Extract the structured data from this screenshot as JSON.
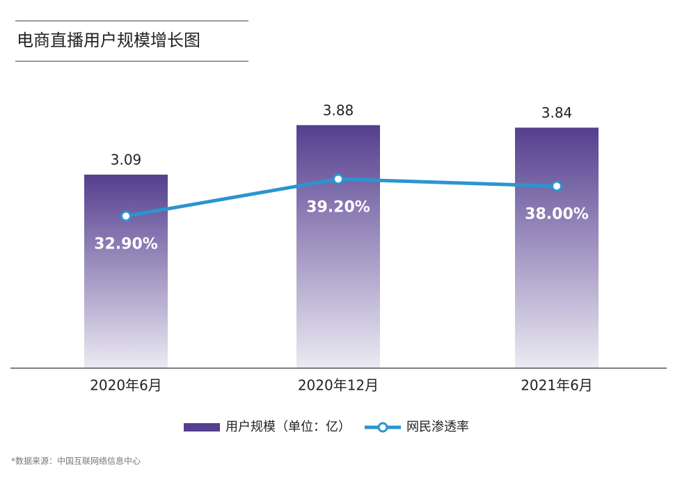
{
  "chart_data": {
    "type": "bar",
    "title": "电商直播用户规模增长图",
    "categories": [
      "2020年6月",
      "2020年12月",
      "2021年6月"
    ],
    "series": [
      {
        "name": "用户规模（单位：亿）",
        "type": "bar",
        "color": "#553f8f",
        "values": [
          3.09,
          3.88,
          3.84
        ]
      },
      {
        "name": "网民渗透率",
        "type": "line",
        "axis": "y2",
        "color": "#2b95d0",
        "values": [
          32.9,
          39.2,
          38.0
        ],
        "value_labels": [
          "32.90%",
          "39.20%",
          "38.00%"
        ]
      }
    ],
    "ylim": [
      0,
      4.5
    ],
    "y2lim": [
      7,
      55
    ],
    "source": "*数据来源：中国互联网络信息中心"
  }
}
